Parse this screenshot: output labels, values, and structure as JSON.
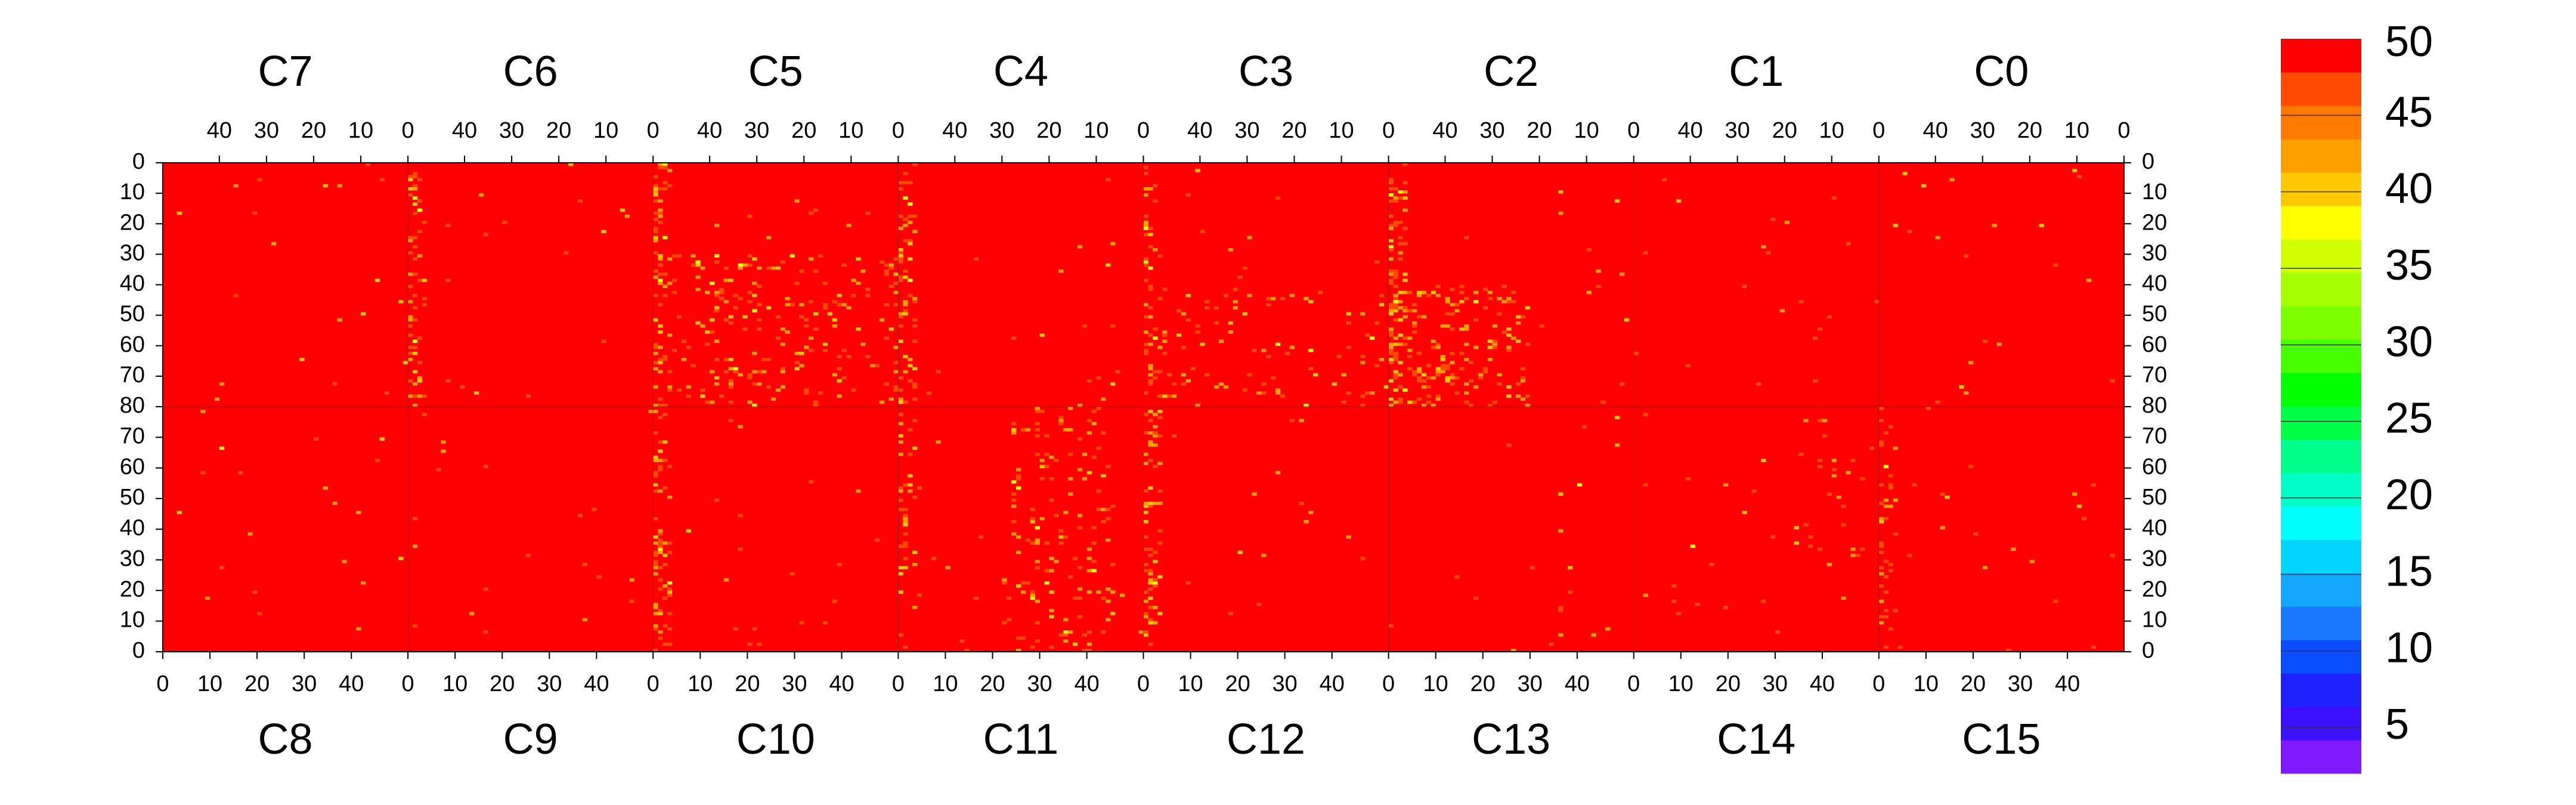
{
  "chart_data": {
    "type": "heatmap",
    "title": "",
    "xlabel": "",
    "ylabel": "",
    "top_chip_labels": [
      "C7",
      "C6",
      "C5",
      "C4",
      "C3",
      "C2",
      "C1",
      "C0"
    ],
    "bottom_chip_labels": [
      "C8",
      "C9",
      "C10",
      "C11",
      "C12",
      "C13",
      "C14",
      "C15"
    ],
    "x_ticks_top": [
      "40",
      "30",
      "20",
      "10",
      "0"
    ],
    "x_ticks_bottom": [
      "0",
      "10",
      "20",
      "30",
      "40"
    ],
    "y_ticks_top_half": [
      "0",
      "10",
      "20",
      "30",
      "40",
      "50",
      "60",
      "70",
      "80"
    ],
    "y_ticks_bottom_half": [
      "70",
      "60",
      "50",
      "40",
      "30",
      "20",
      "10",
      "0"
    ],
    "columns_per_chip": 52,
    "rows_per_chip": 80,
    "value_range": [
      2,
      50
    ],
    "dominant_value": 50,
    "grid": false,
    "colorbar": {
      "position": "right",
      "tick_labels": [
        "50",
        "45",
        "40",
        "35",
        "30",
        "25",
        "20",
        "15",
        "10",
        "5"
      ],
      "tick_values": [
        50,
        45,
        40,
        35,
        30,
        25,
        20,
        15,
        10,
        5
      ],
      "min": 2,
      "max": 50,
      "colors": [
        "#7f1aff",
        "#3b10ff",
        "#1e22ff",
        "#0a4dff",
        "#1a78ff",
        "#12a6ff",
        "#00d4ff",
        "#00ffff",
        "#00ffc4",
        "#00ff8c",
        "#00ff46",
        "#00ff00",
        "#46ff00",
        "#7cff00",
        "#a6ff00",
        "#cfff00",
        "#ffff00",
        "#ffc800",
        "#ffa000",
        "#ff7800",
        "#ff4a00",
        "#ff0000"
      ]
    },
    "background_color": "#ff0000",
    "noisy_column_strips": [
      {
        "half": "top",
        "chip": "C6",
        "edge": "right",
        "intensity": "high"
      },
      {
        "half": "top",
        "chip": "C5",
        "edge": "right",
        "intensity": "high"
      },
      {
        "half": "top",
        "chip": "C4",
        "edge": "right",
        "intensity": "high"
      },
      {
        "half": "top",
        "chip": "C3",
        "edge": "right",
        "intensity": "medium"
      },
      {
        "half": "top",
        "chip": "C2",
        "edge": "right",
        "intensity": "high"
      },
      {
        "half": "bottom",
        "chip": "C10",
        "edge": "left",
        "intensity": "high"
      },
      {
        "half": "bottom",
        "chip": "C11",
        "edge": "left",
        "intensity": "medium"
      },
      {
        "half": "bottom",
        "chip": "C12",
        "edge": "left",
        "intensity": "high"
      },
      {
        "half": "bottom",
        "chip": "C15",
        "edge": "left",
        "intensity": "medium"
      }
    ],
    "noisy_regions": [
      {
        "half": "top",
        "chip": "C2",
        "x_range": [
          22,
          52
        ],
        "y_range": [
          40,
          80
        ],
        "density": "high"
      },
      {
        "half": "top",
        "chip": "C5",
        "x_range": [
          0,
          52
        ],
        "y_range": [
          30,
          80
        ],
        "density": "medium"
      },
      {
        "half": "top",
        "chip": "C3",
        "x_range": [
          0,
          52
        ],
        "y_range": [
          40,
          80
        ],
        "density": "low"
      },
      {
        "half": "bottom",
        "chip": "C11",
        "x_range": [
          22,
          46
        ],
        "y_range": [
          0,
          80
        ],
        "density": "medium"
      },
      {
        "half": "bottom",
        "chip": "C14",
        "x_range": [
          34,
          52
        ],
        "y_range": [
          20,
          80
        ],
        "density": "low"
      }
    ]
  }
}
